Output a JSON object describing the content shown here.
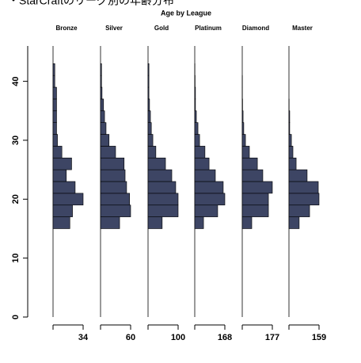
{
  "chart_data": {
    "type": "histogram",
    "orientation": "horizontal",
    "caption": "・StarCraftのリーグ別の年齢分布",
    "title": "Age by League",
    "ylim": [
      0,
      46
    ],
    "yticks": [
      0,
      10,
      20,
      30,
      40
    ],
    "bins": [
      15,
      17,
      19,
      21,
      23,
      25,
      27,
      29,
      31,
      33,
      35,
      37,
      39,
      41,
      43
    ],
    "series": [
      {
        "name": "Bronze",
        "color": "#3d4564",
        "xlim": [
          0,
          34
        ],
        "xticks": [
          34
        ],
        "values": [
          19,
          22,
          34,
          25,
          15,
          21,
          10,
          5,
          4,
          4,
          4,
          4,
          2,
          2
        ]
      },
      {
        "name": "Silver",
        "color": "#3d4564",
        "xlim": [
          0,
          60
        ],
        "xticks": [
          60
        ],
        "values": [
          38,
          60,
          58,
          52,
          49,
          47,
          30,
          17,
          11,
          8,
          6,
          3,
          2,
          2
        ]
      },
      {
        "name": "Gold",
        "color": "#3d4564",
        "xlim": [
          0,
          100
        ],
        "xticks": [
          100
        ],
        "values": [
          47,
          100,
          100,
          92,
          79,
          58,
          26,
          16,
          11,
          8,
          5,
          3,
          3,
          3
        ]
      },
      {
        "name": "Platinum",
        "color": "#3d4564",
        "xlim": [
          0,
          168
        ],
        "xticks": [
          168
        ],
        "values": [
          49,
          128,
          168,
          159,
          115,
          80,
          57,
          27,
          18,
          9,
          4,
          4,
          2,
          1
        ]
      },
      {
        "name": "Diamond",
        "color": "#3d4564",
        "xlim": [
          0,
          177
        ],
        "xticks": [
          177
        ],
        "values": [
          56,
          154,
          154,
          177,
          121,
          89,
          42,
          19,
          9,
          5,
          2,
          1,
          1,
          0
        ]
      },
      {
        "name": "Master",
        "color": "#3d4564",
        "xlim": [
          0,
          159
        ],
        "xticks": [
          159
        ],
        "values": [
          54,
          109,
          159,
          155,
          96,
          38,
          21,
          13,
          4,
          4,
          1,
          0,
          0,
          0
        ]
      }
    ]
  }
}
